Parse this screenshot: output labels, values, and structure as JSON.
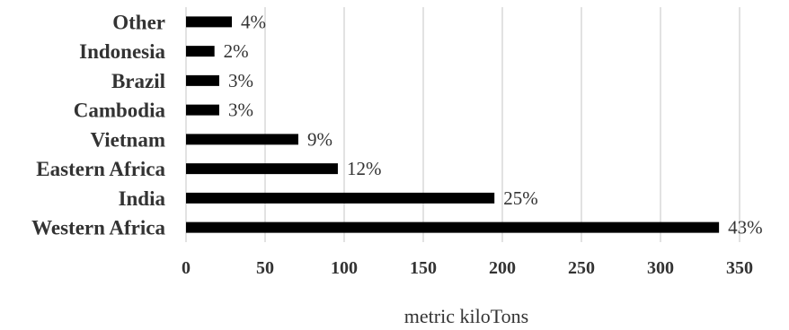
{
  "chart_data": {
    "type": "bar",
    "orientation": "horizontal",
    "categories": [
      "Western Africa",
      "India",
      "Eastern Africa",
      "Vietnam",
      "Cambodia",
      "Brazil",
      "Indonesia",
      "Other"
    ],
    "values": [
      337,
      195,
      96,
      71,
      21,
      21,
      18,
      29
    ],
    "data_labels": [
      "43%",
      "25%",
      "12%",
      "9%",
      "3%",
      "3%",
      "2%",
      "4%"
    ],
    "xlabel": "metric kiloTons",
    "ylabel": "",
    "title": "",
    "xlim": [
      0,
      350
    ],
    "x_ticks": [
      "0",
      "50",
      "100",
      "150",
      "200",
      "250",
      "300",
      "350"
    ],
    "grid": "vertical",
    "legend": "none",
    "colors": {
      "bar": "#000000",
      "grid": "#d9d9d9",
      "text": "#333333"
    }
  }
}
